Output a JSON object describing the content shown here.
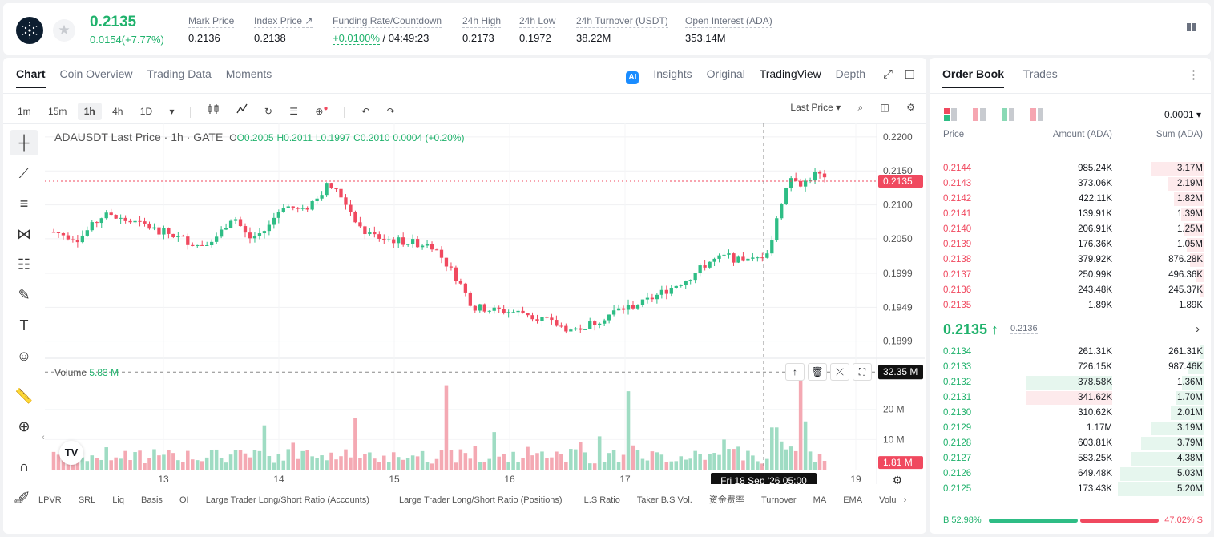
{
  "ticker": {
    "price": "0.2135",
    "change": "0.0154(+7.77%)"
  },
  "stats": [
    {
      "label": "Mark Price",
      "value": "0.2136"
    },
    {
      "label": "Index Price ↗",
      "value": "0.2138"
    },
    {
      "label": "Funding Rate/Countdown",
      "value": "+0.0100%",
      "value2": " / 04:49:23"
    },
    {
      "label": "24h High",
      "value": "0.2173"
    },
    {
      "label": "24h Low",
      "value": "0.1972"
    },
    {
      "label": "24h Turnover (USDT)",
      "value": "38.22M"
    },
    {
      "label": "Open Interest (ADA)",
      "value": "353.14M"
    }
  ],
  "chart_tabs": [
    "Chart",
    "Coin Overview",
    "Trading Data",
    "Moments"
  ],
  "view_tabs": {
    "insights": "Insights",
    "original": "Original",
    "tradingview": "TradingView",
    "depth": "Depth"
  },
  "intervals": [
    "1m",
    "15m",
    "1h",
    "4h",
    "1D"
  ],
  "price_type": "Last Price",
  "legend": {
    "symbol": "ADAUSDT Last Price · 1h · GATE",
    "o": "O0.2005",
    "h": "H0.2011",
    "l": "L0.1997",
    "c": "C0.2010",
    "chg": "0.0004 (+0.20%)"
  },
  "volume_legend": {
    "label": "Volume",
    "value": "5.83 M"
  },
  "price_axis": [
    "0.2200",
    "0.2150",
    "0.2100",
    "0.2050",
    "0.1999",
    "0.1949",
    "0.1899"
  ],
  "vol_axis": [
    "20 M",
    "10 M"
  ],
  "last_price_tag": "0.2135",
  "vol_tag": "32.35 M",
  "vol_last_tag": "1.81 M",
  "time_axis": [
    "13",
    "14",
    "15",
    "16",
    "17",
    "19"
  ],
  "crosshair_time": "Fri 18 Sep '26   05:00",
  "bottom_indicators": [
    "LPVR",
    "SRL",
    "Liq",
    "Basis",
    "OI",
    "Large Trader Long/Short Ratio (Accounts)",
    "Large Trader Long/Short Ratio (Positions)",
    "L.S Ratio",
    "Taker B.S Vol.",
    "资金费率",
    "Turnover",
    "MA",
    "EMA",
    "Volu"
  ],
  "orderbook": {
    "tabs": [
      "Order Book",
      "Trades"
    ],
    "precision": "0.0001",
    "headers": [
      "Price",
      "Amount (ADA)",
      "Sum (ADA)"
    ],
    "asks": [
      [
        "0.2144",
        "985.24K",
        "3.17M"
      ],
      [
        "0.2143",
        "373.06K",
        "2.19M"
      ],
      [
        "0.2142",
        "422.11K",
        "1.82M"
      ],
      [
        "0.2141",
        "139.91K",
        "1.39M"
      ],
      [
        "0.2140",
        "206.91K",
        "1.25M"
      ],
      [
        "0.2139",
        "176.36K",
        "1.05M"
      ],
      [
        "0.2138",
        "379.92K",
        "876.28K"
      ],
      [
        "0.2137",
        "250.99K",
        "496.36K"
      ],
      [
        "0.2136",
        "243.48K",
        "245.37K"
      ],
      [
        "0.2135",
        "1.89K",
        "1.89K"
      ]
    ],
    "mid_price": "0.2135 ↑",
    "mid_mark": "0.2136",
    "bids": [
      [
        "0.2134",
        "261.31K",
        "261.31K"
      ],
      [
        "0.2133",
        "726.15K",
        "987.46K"
      ],
      [
        "0.2132",
        "378.58K",
        "1.36M"
      ],
      [
        "0.2131",
        "341.62K",
        "1.70M"
      ],
      [
        "0.2130",
        "310.62K",
        "2.01M"
      ],
      [
        "0.2129",
        "1.17M",
        "3.19M"
      ],
      [
        "0.2128",
        "603.81K",
        "3.79M"
      ],
      [
        "0.2127",
        "583.25K",
        "4.38M"
      ],
      [
        "0.2126",
        "649.48K",
        "5.03M"
      ],
      [
        "0.2125",
        "173.43K",
        "5.20M"
      ]
    ],
    "ask_depth": [
      0.61,
      0.42,
      0.35,
      0.27,
      0.24,
      0.2,
      0.17,
      0.1,
      0.05,
      0.0
    ],
    "bid_depth": [
      0.05,
      0.19,
      0.26,
      0.33,
      0.39,
      0.61,
      0.73,
      0.84,
      0.97,
      1.0
    ],
    "buy_ratio": "B 52.98%",
    "sell_ratio": "47.02% S",
    "buy_frac": 0.5298
  },
  "chart_data": {
    "type": "candlestick",
    "title": "ADAUSDT Last Price · 1h · GATE",
    "y_range": [
      0.1875,
      0.222
    ],
    "vol_range": [
      0,
      34
    ],
    "candles_ohlc_sample": "see script series",
    "colors": {
      "up": "#2ebd85",
      "down": "#f0495f"
    }
  }
}
